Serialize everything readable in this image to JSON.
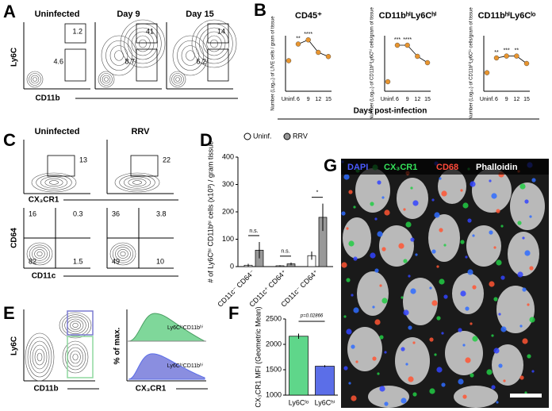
{
  "panel_labels": [
    "A",
    "B",
    "C",
    "D",
    "E",
    "F",
    "G"
  ],
  "panel_a": {
    "columns": [
      "Uninfected",
      "Day 9",
      "Day 15"
    ],
    "y_label": "Ly6C",
    "x_label": "CD11b",
    "gates": [
      [
        1.2,
        4.6
      ],
      [
        41,
        8.7
      ],
      [
        14,
        6.2
      ]
    ]
  },
  "panel_b": {
    "x_label": "Days post-infection"
  },
  "panel_c": {
    "columns": [
      "Uninfected",
      "RRV"
    ],
    "top_x_label": "CX₃CR1",
    "top_gates": [
      13,
      22
    ],
    "y_label": "CD64",
    "x_label": "CD11c",
    "quadrants": [
      [
        16,
        0.3,
        82,
        1.5
      ],
      [
        36,
        3.8,
        49,
        10
      ]
    ]
  },
  "panel_e": {
    "y_label": "Ly6C",
    "x_label": "CD11b",
    "hist_y_label": "% of max.",
    "hist_x_label": "CX₃CR1",
    "hist_labels": [
      "Ly6CˡᵒCD11bʰⁱ",
      "Ly6CʰⁱCD11bʰⁱ"
    ]
  },
  "panel_g": {
    "labels": [
      "DAPI",
      "CX₃CR1",
      "CD68",
      "Phalloidin"
    ]
  },
  "chart_data": [
    {
      "type": "line",
      "title": "CD45⁺",
      "y_label": "Number (Log₁₀) of LIVE cells / gram of tissue",
      "categories": [
        "Uninf.",
        "6",
        "9",
        "12",
        "15"
      ],
      "values": [
        6.2,
        7.4,
        7.7,
        6.8,
        6.5
      ],
      "color": "#e8952f",
      "ylim": [
        4,
        8
      ],
      "annotations": [
        {
          "text": "**",
          "x": "6"
        },
        {
          "text": "****",
          "x": "9"
        }
      ]
    },
    {
      "type": "line",
      "title": "CD11bʰⁱLy6Cʰⁱ",
      "y_label": "Number (Log₁₀) of CD11bʰⁱLy6Cʰⁱ cells/gram of tissue",
      "categories": [
        "Uninf.",
        "6",
        "9",
        "12",
        "15"
      ],
      "values": [
        4.6,
        6.9,
        6.9,
        6.2,
        5.8
      ],
      "color": "#e8952f",
      "ylim": [
        4,
        7.5
      ],
      "annotations": [
        {
          "text": "***",
          "x": "6"
        },
        {
          "text": "****",
          "x": "9"
        }
      ]
    },
    {
      "type": "line",
      "title": "CD11bʰⁱLy6Cˡᵒ",
      "y_label": "Number (Log₁₀) of CD11bʰⁱLy6Cˡᵒ cells/gram of tissue",
      "categories": [
        "Uninf.",
        "6",
        "9",
        "12",
        "15"
      ],
      "values": [
        5.0,
        5.8,
        5.9,
        5.9,
        5.5
      ],
      "color": "#e8952f",
      "ylim": [
        4,
        7
      ],
      "annotations": [
        {
          "text": "**",
          "x": "6"
        },
        {
          "text": "***",
          "x": "9"
        },
        {
          "text": "**",
          "x": "12"
        }
      ]
    },
    {
      "type": "bar",
      "y_label": "# of Ly6Cʰⁱ CD11bʰⁱ cells (x10³) / gram tissue",
      "categories": [
        "CD11c⁻ CD64⁻",
        "CD11c⁺ CD64⁺",
        "CD11c⁻ CD64⁺"
      ],
      "series": [
        {
          "name": "Uninf.",
          "color": "#ffffff",
          "values": [
            5,
            3,
            40
          ],
          "errors": [
            5,
            2,
            15
          ]
        },
        {
          "name": "RRV",
          "color": "#999999",
          "values": [
            60,
            10,
            180
          ],
          "errors": [
            30,
            5,
            50
          ]
        }
      ],
      "ylim": [
        0,
        400
      ],
      "yticks": [
        0,
        100,
        200,
        300,
        400
      ],
      "annotations": [
        {
          "text": "n.s.",
          "category": "CD11c⁻ CD64⁻"
        },
        {
          "text": "n.s.",
          "category": "CD11c⁺ CD64⁺"
        },
        {
          "text": "*",
          "category": "CD11c⁻ CD64⁺"
        }
      ]
    },
    {
      "type": "bar",
      "y_label": "CX₃CR1 MFI (Geometric Mean)",
      "categories": [
        "Ly6Cˡᵒ",
        "Ly6Cʰⁱ"
      ],
      "values": [
        2160,
        1570
      ],
      "errors": [
        50,
        20
      ],
      "colors": [
        "#5fd68a",
        "#5b6ee8"
      ],
      "ylim": [
        1000,
        2500
      ],
      "yticks": [
        1000,
        1500,
        2000,
        2500
      ],
      "annotations": [
        {
          "text": "p=0.02866"
        }
      ]
    }
  ]
}
